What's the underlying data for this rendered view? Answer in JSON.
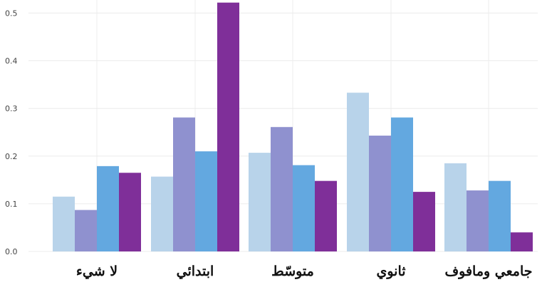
{
  "chart_data": {
    "type": "bar",
    "title": "",
    "xlabel": "",
    "ylabel": "",
    "categories": [
      "لا شيء",
      "ابتدائي",
      "متوسّط",
      "ثانوي",
      "جامعي ومافوف"
    ],
    "series": [
      {
        "color": "#b8d3ea",
        "values": [
          0.115,
          0.157,
          0.207,
          0.333,
          0.185
        ]
      },
      {
        "color": "#8f91cf",
        "values": [
          0.087,
          0.281,
          0.261,
          0.243,
          0.128
        ]
      },
      {
        "color": "#63a8e0",
        "values": [
          0.179,
          0.21,
          0.181,
          0.281,
          0.148
        ]
      },
      {
        "color": "#7f2f99",
        "values": [
          0.165,
          0.522,
          0.148,
          0.125,
          0.04
        ]
      }
    ],
    "ylim": [
      0,
      0.52
    ],
    "yticks": [
      "0.0",
      "0.1",
      "0.2",
      "0.3",
      "0.4",
      "0.5"
    ],
    "grid": true,
    "legend": "none"
  }
}
